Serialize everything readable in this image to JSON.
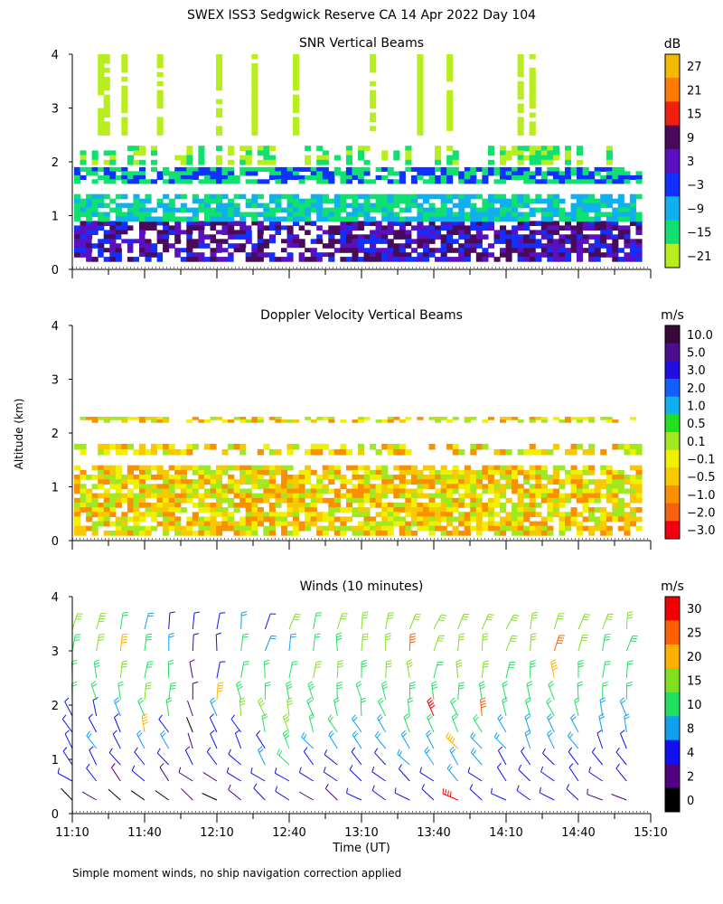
{
  "figure": {
    "title": "SWEX ISS3 Sedgwick Reserve CA  14 Apr 2022 Day 104",
    "ylabel": "Altitude (km)",
    "xlabel": "Time (UT)",
    "footnote": "Simple moment winds, no ship navigation correction applied"
  },
  "chart_data": [
    {
      "type": "heatmap",
      "title": "SNR Vertical Beams",
      "ylabel": "Altitude (km)",
      "ylim": [
        0,
        4
      ],
      "yticks": [
        "0",
        "1",
        "2",
        "3",
        "4"
      ],
      "xlim": [
        "11:10",
        "15:10"
      ],
      "colorbar": {
        "unit": "dB",
        "labels": [
          "27",
          "21",
          "15",
          "9",
          "3",
          "−3",
          "−9",
          "−15",
          "−21"
        ],
        "colors": [
          "#f5b800",
          "#ff7a00",
          "#f02010",
          "#4a0a5a",
          "#5a10c0",
          "#1030ff",
          "#10b0f0",
          "#10e070",
          "#b8ee20"
        ]
      },
      "layers": [
        {
          "range_km": [
            0.15,
            0.9
          ],
          "signal": "strongest, dB 3 to 27",
          "dominant": [
            "#1030ff",
            "#5a10c0",
            "#4a0a5a"
          ]
        },
        {
          "range_km": [
            0.9,
            1.4
          ],
          "signal": "moderate, dB -15 to -3",
          "dominant": [
            "#10b0f0",
            "#10e070"
          ]
        },
        {
          "range_km": [
            1.6,
            1.9
          ],
          "signal": "weak band, dB -21 to -3",
          "dominant": [
            "#10e070",
            "#1030ff"
          ]
        },
        {
          "range_km": [
            1.95,
            2.3
          ],
          "signal": "weak, dB -21 to -15",
          "dominant": [
            "#b8ee20",
            "#10e070"
          ]
        },
        {
          "range_km": [
            2.5,
            4.0
          ],
          "signal": "sporadic, dB -21 to -15",
          "dominant": [
            "#b8ee20"
          ]
        }
      ]
    },
    {
      "type": "heatmap",
      "title": "Doppler Velocity Vertical Beams",
      "ylabel": "Altitude (km)",
      "ylim": [
        0,
        4
      ],
      "yticks": [
        "0",
        "1",
        "2",
        "3",
        "4"
      ],
      "xlim": [
        "11:10",
        "15:10"
      ],
      "colorbar": {
        "unit": "m/s",
        "labels": [
          "10.0",
          "5.0",
          "3.0",
          "2.0",
          "1.0",
          "0.5",
          "0.1",
          "−0.1",
          "−0.5",
          "−1.0",
          "−2.0",
          "−3.0"
        ],
        "colors": [
          "#3a0838",
          "#4a0e90",
          "#2010e0",
          "#1060ff",
          "#10b0f0",
          "#20e020",
          "#a0e820",
          "#f0f000",
          "#f8c800",
          "#f89000",
          "#f86010",
          "#f00010"
        ]
      },
      "layers": [
        {
          "range_km": [
            0.1,
            1.4
          ],
          "velocity": "mostly -0.5 to 0.1 m/s (downward, yellow-orange)"
        },
        {
          "range_km": [
            1.6,
            1.8
          ],
          "velocity": "-1.0 to -0.1 m/s"
        },
        {
          "range_km": [
            2.2,
            2.3
          ],
          "velocity": "sparse, near 0 m/s"
        }
      ]
    },
    {
      "type": "wind_barbs",
      "title": "Winds (10 minutes)",
      "ylabel": "Altitude (km)",
      "ylim": [
        0,
        4
      ],
      "yticks": [
        "0",
        "1",
        "2",
        "3",
        "4"
      ],
      "xlabel": "Time (UT)",
      "xticks": [
        "11:10",
        "11:40",
        "12:10",
        "12:40",
        "13:10",
        "13:40",
        "14:10",
        "14:40",
        "15:10"
      ],
      "colorbar": {
        "unit": "m/s",
        "labels": [
          "30",
          "25",
          "20",
          "15",
          "10",
          "8",
          "4",
          "2",
          "0"
        ],
        "colors": [
          "#f00000",
          "#ff6000",
          "#ffb000",
          "#80e020",
          "#20e060",
          "#10a0f0",
          "#1010f0",
          "#500080",
          "#000000"
        ]
      },
      "profiles": [
        {
          "time": "11:10",
          "speed_ms": [
            0,
            4,
            6,
            7,
            6,
            5,
            10,
            12,
            14,
            16
          ]
        },
        {
          "time": "11:20",
          "speed_ms": [
            2,
            4,
            6,
            8,
            7,
            6,
            10,
            14,
            16,
            18
          ]
        },
        {
          "time": "11:30",
          "speed_ms": [
            0,
            3,
            5,
            6,
            7,
            8,
            10,
            15,
            20,
            12
          ]
        },
        {
          "time": "11:40",
          "speed_ms": [
            1,
            5,
            7,
            8,
            20,
            10,
            15,
            14,
            13,
            8
          ]
        },
        {
          "time": "11:50",
          "speed_ms": [
            0,
            3,
            5,
            8,
            7,
            10,
            14,
            12,
            8,
            6
          ]
        },
        {
          "time": "12:00",
          "speed_ms": [
            2,
            3,
            4,
            2,
            1,
            2,
            3,
            3,
            4,
            5
          ]
        },
        {
          "time": "12:10",
          "speed_ms": [
            0,
            2,
            4,
            6,
            7,
            8,
            20,
            6,
            5,
            7
          ]
        },
        {
          "time": "12:20",
          "speed_ms": [
            3,
            4,
            6,
            5,
            7,
            15,
            14,
            12,
            10,
            8
          ]
        },
        {
          "time": "12:30",
          "speed_ms": [
            5,
            6,
            8,
            7,
            10,
            15,
            12,
            10,
            8,
            6
          ]
        },
        {
          "time": "12:40",
          "speed_ms": [
            6,
            7,
            12,
            14,
            16,
            15,
            13,
            11,
            9,
            16
          ]
        },
        {
          "time": "12:50",
          "speed_ms": [
            2,
            4,
            6,
            8,
            10,
            12,
            14,
            16,
            12,
            10
          ]
        },
        {
          "time": "13:00",
          "speed_ms": [
            3,
            5,
            7,
            8,
            10,
            12,
            14,
            15,
            14,
            16
          ]
        },
        {
          "time": "13:10",
          "speed_ms": [
            4,
            6,
            7,
            8,
            9,
            10,
            12,
            14,
            15,
            16
          ]
        },
        {
          "time": "13:20",
          "speed_ms": [
            5,
            6,
            7,
            8,
            9,
            12,
            14,
            15,
            16,
            17
          ]
        },
        {
          "time": "13:30",
          "speed_ms": [
            5,
            6,
            8,
            8,
            10,
            12,
            14,
            16,
            25,
            16
          ]
        },
        {
          "time": "13:40",
          "speed_ms": [
            6,
            7,
            8,
            9,
            10,
            30,
            14,
            12,
            16,
            15
          ]
        },
        {
          "time": "13:50",
          "speed_ms": [
            30,
            8,
            9,
            20,
            10,
            12,
            14,
            15,
            16,
            17
          ]
        },
        {
          "time": "14:00",
          "speed_ms": [
            6,
            7,
            8,
            9,
            10,
            28,
            14,
            15,
            16,
            17
          ]
        },
        {
          "time": "14:10",
          "speed_ms": [
            5,
            6,
            7,
            8,
            9,
            10,
            12,
            14,
            15,
            16
          ]
        },
        {
          "time": "14:20",
          "speed_ms": [
            5,
            6,
            7,
            8,
            9,
            10,
            12,
            14,
            15,
            16
          ]
        },
        {
          "time": "14:30",
          "speed_ms": [
            4,
            6,
            7,
            8,
            9,
            10,
            12,
            20,
            25,
            16
          ]
        },
        {
          "time": "14:40",
          "speed_ms": [
            4,
            5,
            7,
            8,
            9,
            10,
            12,
            14,
            15,
            16
          ]
        },
        {
          "time": "14:50",
          "speed_ms": [
            3,
            5,
            6,
            7,
            8,
            9,
            10,
            12,
            14,
            15
          ]
        },
        {
          "time": "15:00",
          "speed_ms": [
            2,
            4,
            6,
            7,
            8,
            9,
            10,
            12,
            14,
            15
          ]
        }
      ],
      "profile_altitudes_km": [
        0.25,
        0.6,
        0.9,
        1.2,
        1.5,
        1.8,
        2.1,
        2.5,
        3.0,
        3.4
      ]
    }
  ]
}
